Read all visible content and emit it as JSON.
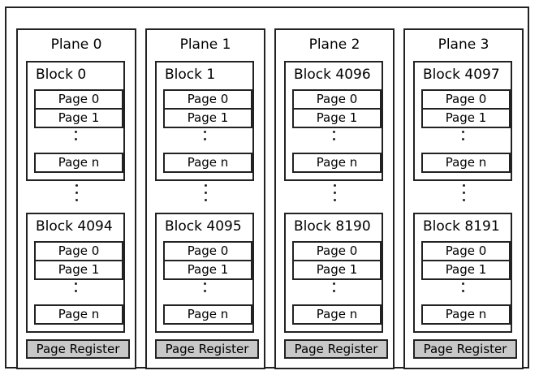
{
  "planes": [
    {
      "title": "Plane 0",
      "blocks": [
        {
          "title": "Block 0",
          "pages": [
            "Page 0",
            "Page 1",
            "Page n"
          ]
        },
        {
          "title": "Block 4094",
          "pages": [
            "Page 0",
            "Page 1",
            "Page n"
          ]
        }
      ],
      "register": "Page Register"
    },
    {
      "title": "Plane 1",
      "blocks": [
        {
          "title": "Block 1",
          "pages": [
            "Page 0",
            "Page 1",
            "Page n"
          ]
        },
        {
          "title": "Block 4095",
          "pages": [
            "Page 0",
            "Page 1",
            "Page n"
          ]
        }
      ],
      "register": "Page Register"
    },
    {
      "title": "Plane 2",
      "blocks": [
        {
          "title": "Block 4096",
          "pages": [
            "Page 0",
            "Page 1",
            "Page n"
          ]
        },
        {
          "title": "Block 8190",
          "pages": [
            "Page 0",
            "Page 1",
            "Page n"
          ]
        }
      ],
      "register": "Page Register"
    },
    {
      "title": "Plane 3",
      "blocks": [
        {
          "title": "Block 4097",
          "pages": [
            "Page 0",
            "Page 1",
            "Page n"
          ]
        },
        {
          "title": "Block 8191",
          "pages": [
            "Page 0",
            "Page 1",
            "Page n"
          ]
        }
      ],
      "register": "Page Register"
    }
  ],
  "colors": {
    "border": "#222222",
    "register_fill": "#c8c8c8",
    "background": "#ffffff"
  }
}
